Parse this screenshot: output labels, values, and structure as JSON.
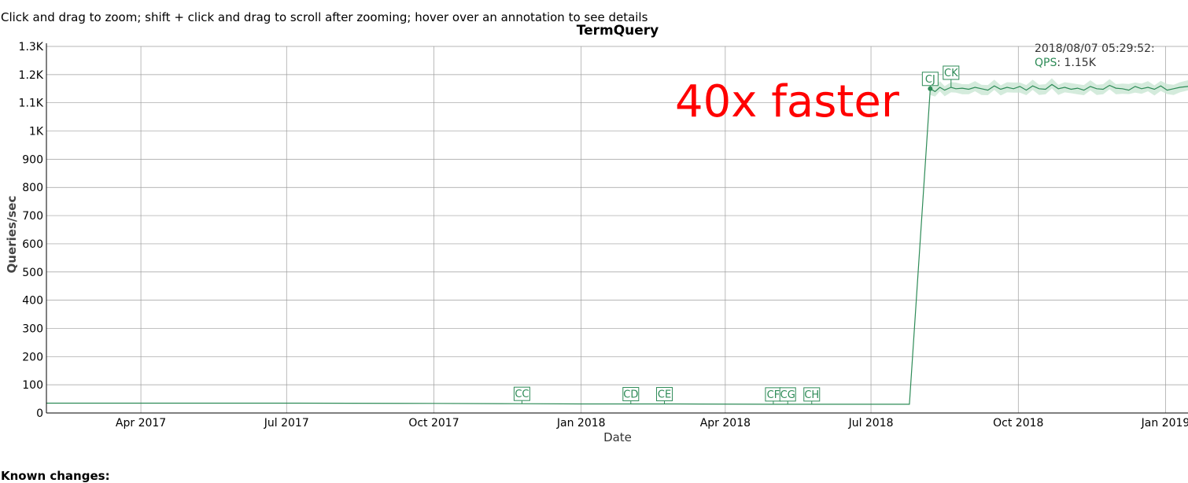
{
  "instructions": "Click and drag to zoom; shift + click and drag to scroll after zooming; hover over an annotation to see details",
  "known_changes_heading": "Known changes:",
  "colors": {
    "series": "#2e8b57",
    "band": "#c9e6d3",
    "grid": "#9e9e9e",
    "annotation_text": "#2e8b57",
    "overlay_text": "#ff0000"
  },
  "legend": {
    "timestamp": "2018/08/07 05:29:52:",
    "series_label": "QPS",
    "series_value": "1.15K"
  },
  "overlay_text": "40x faster",
  "chart_data": {
    "type": "line",
    "title": "TermQuery",
    "xlabel": "Date",
    "ylabel": "Queries/sec",
    "x_range": [
      "2017-02-01",
      "2019-01-15"
    ],
    "ylim": [
      0,
      1300
    ],
    "grid": true,
    "legend_position": "top-right",
    "x_ticks": [
      {
        "date": "2017-04-01",
        "label": "Apr 2017"
      },
      {
        "date": "2017-07-01",
        "label": "Jul 2017"
      },
      {
        "date": "2017-10-01",
        "label": "Oct 2017"
      },
      {
        "date": "2018-01-01",
        "label": "Jan 2018"
      },
      {
        "date": "2018-04-01",
        "label": "Apr 2018"
      },
      {
        "date": "2018-07-01",
        "label": "Jul 2018"
      },
      {
        "date": "2018-10-01",
        "label": "Oct 2018"
      },
      {
        "date": "2019-01-01",
        "label": "Jan 2019"
      }
    ],
    "y_ticks": [
      {
        "value": 0,
        "label": "0"
      },
      {
        "value": 100,
        "label": "100"
      },
      {
        "value": 200,
        "label": "200"
      },
      {
        "value": 300,
        "label": "300"
      },
      {
        "value": 400,
        "label": "400"
      },
      {
        "value": 500,
        "label": "500"
      },
      {
        "value": 600,
        "label": "600"
      },
      {
        "value": 700,
        "label": "700"
      },
      {
        "value": 800,
        "label": "800"
      },
      {
        "value": 900,
        "label": "900"
      },
      {
        "value": 1000,
        "label": "1K"
      },
      {
        "value": 1100,
        "label": "1.1K"
      },
      {
        "value": 1200,
        "label": "1.2K"
      },
      {
        "value": 1300,
        "label": "1.3K"
      }
    ],
    "series": [
      {
        "name": "QPS",
        "points": [
          [
            "2017-02-01",
            35
          ],
          [
            "2017-04-01",
            35
          ],
          [
            "2017-07-01",
            35
          ],
          [
            "2017-10-01",
            34
          ],
          [
            "2017-11-25",
            33
          ],
          [
            "2018-01-01",
            32
          ],
          [
            "2018-03-01",
            32
          ],
          [
            "2018-05-01",
            31
          ],
          [
            "2018-07-25",
            31
          ],
          [
            "2018-08-07",
            1150
          ],
          [
            "2018-08-10",
            1140
          ],
          [
            "2018-08-13",
            1155
          ],
          [
            "2018-08-16",
            1145
          ],
          [
            "2018-08-20",
            1155
          ],
          [
            "2018-08-23",
            1150
          ],
          [
            "2018-08-27",
            1152
          ],
          [
            "2018-08-31",
            1148
          ],
          [
            "2018-09-04",
            1155
          ],
          [
            "2018-09-08",
            1150
          ],
          [
            "2018-09-12",
            1145
          ],
          [
            "2018-09-16",
            1160
          ],
          [
            "2018-09-20",
            1148
          ],
          [
            "2018-09-24",
            1155
          ],
          [
            "2018-09-28",
            1150
          ],
          [
            "2018-10-02",
            1158
          ],
          [
            "2018-10-06",
            1145
          ],
          [
            "2018-10-10",
            1160
          ],
          [
            "2018-10-14",
            1150
          ],
          [
            "2018-10-18",
            1148
          ],
          [
            "2018-10-22",
            1165
          ],
          [
            "2018-10-26",
            1150
          ],
          [
            "2018-10-30",
            1155
          ],
          [
            "2018-11-03",
            1148
          ],
          [
            "2018-11-07",
            1152
          ],
          [
            "2018-11-11",
            1145
          ],
          [
            "2018-11-15",
            1158
          ],
          [
            "2018-11-19",
            1150
          ],
          [
            "2018-11-23",
            1148
          ],
          [
            "2018-11-27",
            1162
          ],
          [
            "2018-12-01",
            1152
          ],
          [
            "2018-12-05",
            1150
          ],
          [
            "2018-12-09",
            1145
          ],
          [
            "2018-12-13",
            1158
          ],
          [
            "2018-12-17",
            1150
          ],
          [
            "2018-12-21",
            1155
          ],
          [
            "2018-12-25",
            1148
          ],
          [
            "2018-12-29",
            1160
          ],
          [
            "2019-01-02",
            1145
          ],
          [
            "2019-01-06",
            1150
          ],
          [
            "2019-01-10",
            1155
          ],
          [
            "2019-01-15",
            1158
          ]
        ]
      }
    ],
    "highlight_point": [
      "2018-08-07",
      1150
    ],
    "annotations": [
      {
        "label": "CC",
        "date": "2017-11-25"
      },
      {
        "label": "CD",
        "date": "2018-02-01"
      },
      {
        "label": "CE",
        "date": "2018-02-22"
      },
      {
        "label": "CF",
        "date": "2018-05-01"
      },
      {
        "label": "CG",
        "date": "2018-05-10"
      },
      {
        "label": "CH",
        "date": "2018-05-25"
      },
      {
        "label": "CJ",
        "date": "2018-08-07"
      },
      {
        "label": "CK",
        "date": "2018-08-20"
      }
    ]
  }
}
